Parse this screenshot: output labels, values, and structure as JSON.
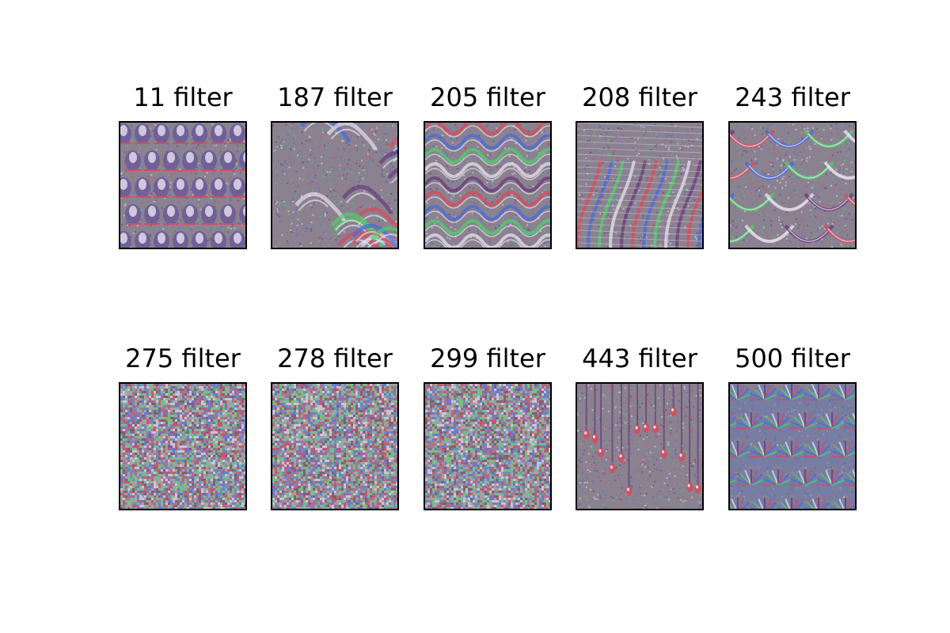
{
  "figure": {
    "panels": [
      {
        "title": "11 filter",
        "pattern": "feather-rows"
      },
      {
        "title": "187 filter",
        "pattern": "swirls"
      },
      {
        "title": "205 filter",
        "pattern": "waves"
      },
      {
        "title": "208 filter",
        "pattern": "ridges"
      },
      {
        "title": "243 filter",
        "pattern": "arches"
      },
      {
        "title": "275 filter",
        "pattern": "noise"
      },
      {
        "title": "278 filter",
        "pattern": "noise"
      },
      {
        "title": "299 filter",
        "pattern": "noise"
      },
      {
        "title": "443 filter",
        "pattern": "droplets"
      },
      {
        "title": "500 filter",
        "pattern": "fan-scales"
      }
    ],
    "colors": {
      "background": "#ffffff",
      "frame": "#000000",
      "texture_base": "#8a8290",
      "texture_accents": [
        "#d94a5a",
        "#4a6ad9",
        "#4fcf6a",
        "#e8e0f0",
        "#6a3a7a"
      ]
    }
  }
}
